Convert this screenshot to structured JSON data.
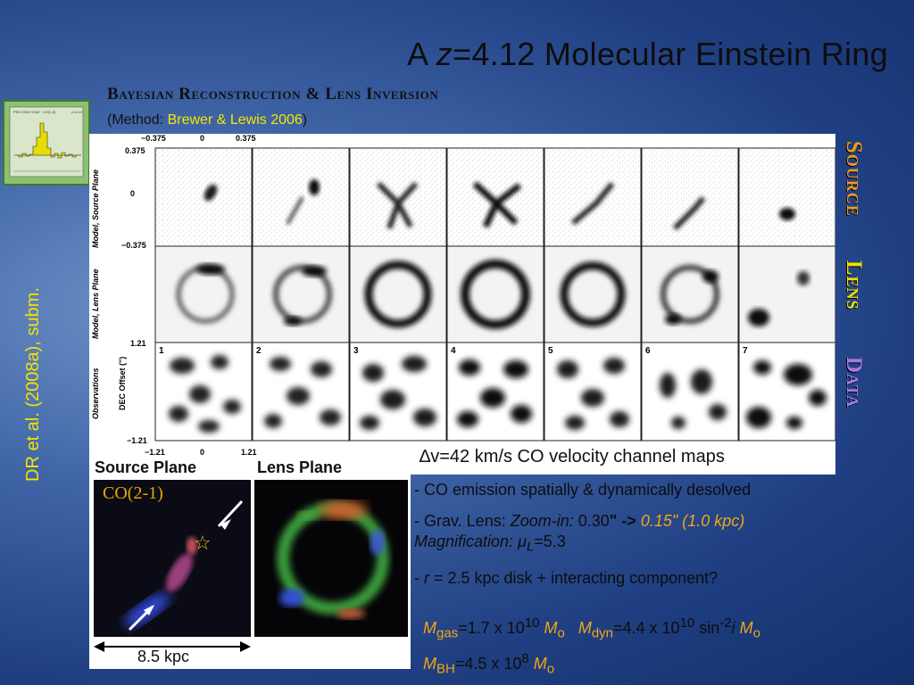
{
  "slide": {
    "title_pre": "A ",
    "title_var": "z",
    "title_post": "=4.12 Molecular Einstein Ring",
    "subtitle": "Bayesian Reconstruction & Lens Inversion",
    "method_prefix": "(Method: ",
    "method_ref": "Brewer & Lewis 2006",
    "method_suffix": ")",
    "citation": "DR et al. (2008a), subm."
  },
  "spectrum": {
    "title": "PSS 2322+1944 · CO(1-0)",
    "badge": "z=4.12"
  },
  "figure": {
    "axis_labels": {
      "source_plane": "Model, Source Plane",
      "lens_plane": "Model, Lens Plane",
      "observations": "Observations",
      "dec_offset": "DEC Offset (\")"
    },
    "top_ticks": [
      "−0.375",
      "0",
      "0.375"
    ],
    "source_ticks": [
      "0.375",
      "0",
      "−0.375"
    ],
    "obs_ticks": [
      "1.21",
      "−1.21"
    ],
    "bottom_ticks": [
      "−1.21",
      "0",
      "1.21"
    ],
    "channel_numbers": [
      "1",
      "2",
      "3",
      "4",
      "5",
      "6",
      "7"
    ],
    "caption_symbol": "∆",
    "caption_text": "v=42 km/s CO velocity channel maps",
    "row_labels": {
      "source": "Source",
      "lens": "Lens",
      "data": "Data"
    }
  },
  "bottom_panels": {
    "source_heading": "Source Plane",
    "lens_heading": "Lens Plane",
    "co_label": "CO(2-1)",
    "scale_label": "8.5 kpc",
    "star_glyph": "☆"
  },
  "bullets": {
    "b1": "- CO emission spatially & dynamically desolved",
    "b2_prefix": "- Grav. Lens: ",
    "b2_zoom": "Zoom-in:",
    "b2_val": " 0.30",
    "b2_quote": "\"",
    "b2_arrow": " -> ",
    "b2_new": "0.15\"  (1.0 kpc)",
    "b2_mag": "Magnification: ",
    "b2_mu": "μ",
    "b2_mu_sub": "L",
    "b2_mag_val": "=5.3",
    "b3_prefix": "- ",
    "b3_r": "r",
    "b3_text": " = 2.5 kpc disk + interacting component?"
  },
  "masses": {
    "m_gas_sym": "M",
    "m_gas_sub": "gas",
    "m_gas_val": "=1.7 x 10",
    "m_gas_exp": "10",
    "m_sun_sym": "M",
    "m_sun_sub": "o",
    "m_dyn_sym": "M",
    "m_dyn_sub": "dyn",
    "m_dyn_val": "=4.4 x 10",
    "m_dyn_exp": "10",
    "m_dyn_sin": " sin",
    "m_dyn_sin_exp": "-2",
    "m_dyn_i": "i",
    "m_bh_sym": "M",
    "m_bh_sub": "BH",
    "m_bh_val": "=4.5 x 10",
    "m_bh_exp": "8"
  }
}
